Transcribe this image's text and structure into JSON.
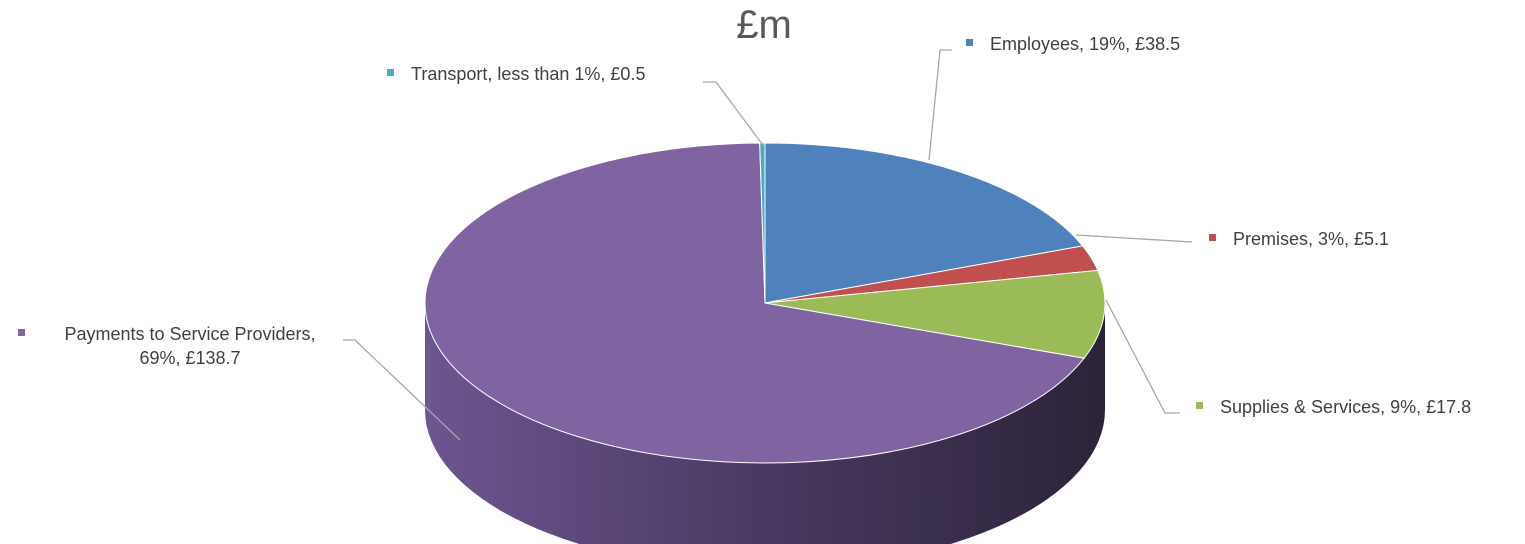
{
  "chart_data": {
    "type": "pie",
    "title": "£m",
    "style": "3d",
    "legend": "none",
    "slices": [
      {
        "name": "Employees",
        "value": 38.5,
        "percent_label": "19%",
        "color": "#4F81BD",
        "label_lines": [
          "Employees, 19%, £38.5"
        ]
      },
      {
        "name": "Premises",
        "value": 5.1,
        "percent_label": "3%",
        "color": "#C0504D",
        "label_lines": [
          "Premises, 3%, £5.1"
        ]
      },
      {
        "name": "Supplies & Services",
        "value": 17.8,
        "percent_label": "9%",
        "color": "#9BBB59",
        "label_lines": [
          "Supplies & Services, 9%, £17.8"
        ]
      },
      {
        "name": "Payments to Service Providers",
        "value": 138.7,
        "percent_label": "69%",
        "color": "#8064A2",
        "label_lines": [
          "Payments to Service Providers,",
          "69%, £138.7"
        ]
      },
      {
        "name": "Transport",
        "value": 0.5,
        "percent_label": "less than 1%",
        "color": "#4BACC6",
        "label_lines": [
          "Transport, less than 1%, £0.5"
        ]
      }
    ]
  }
}
